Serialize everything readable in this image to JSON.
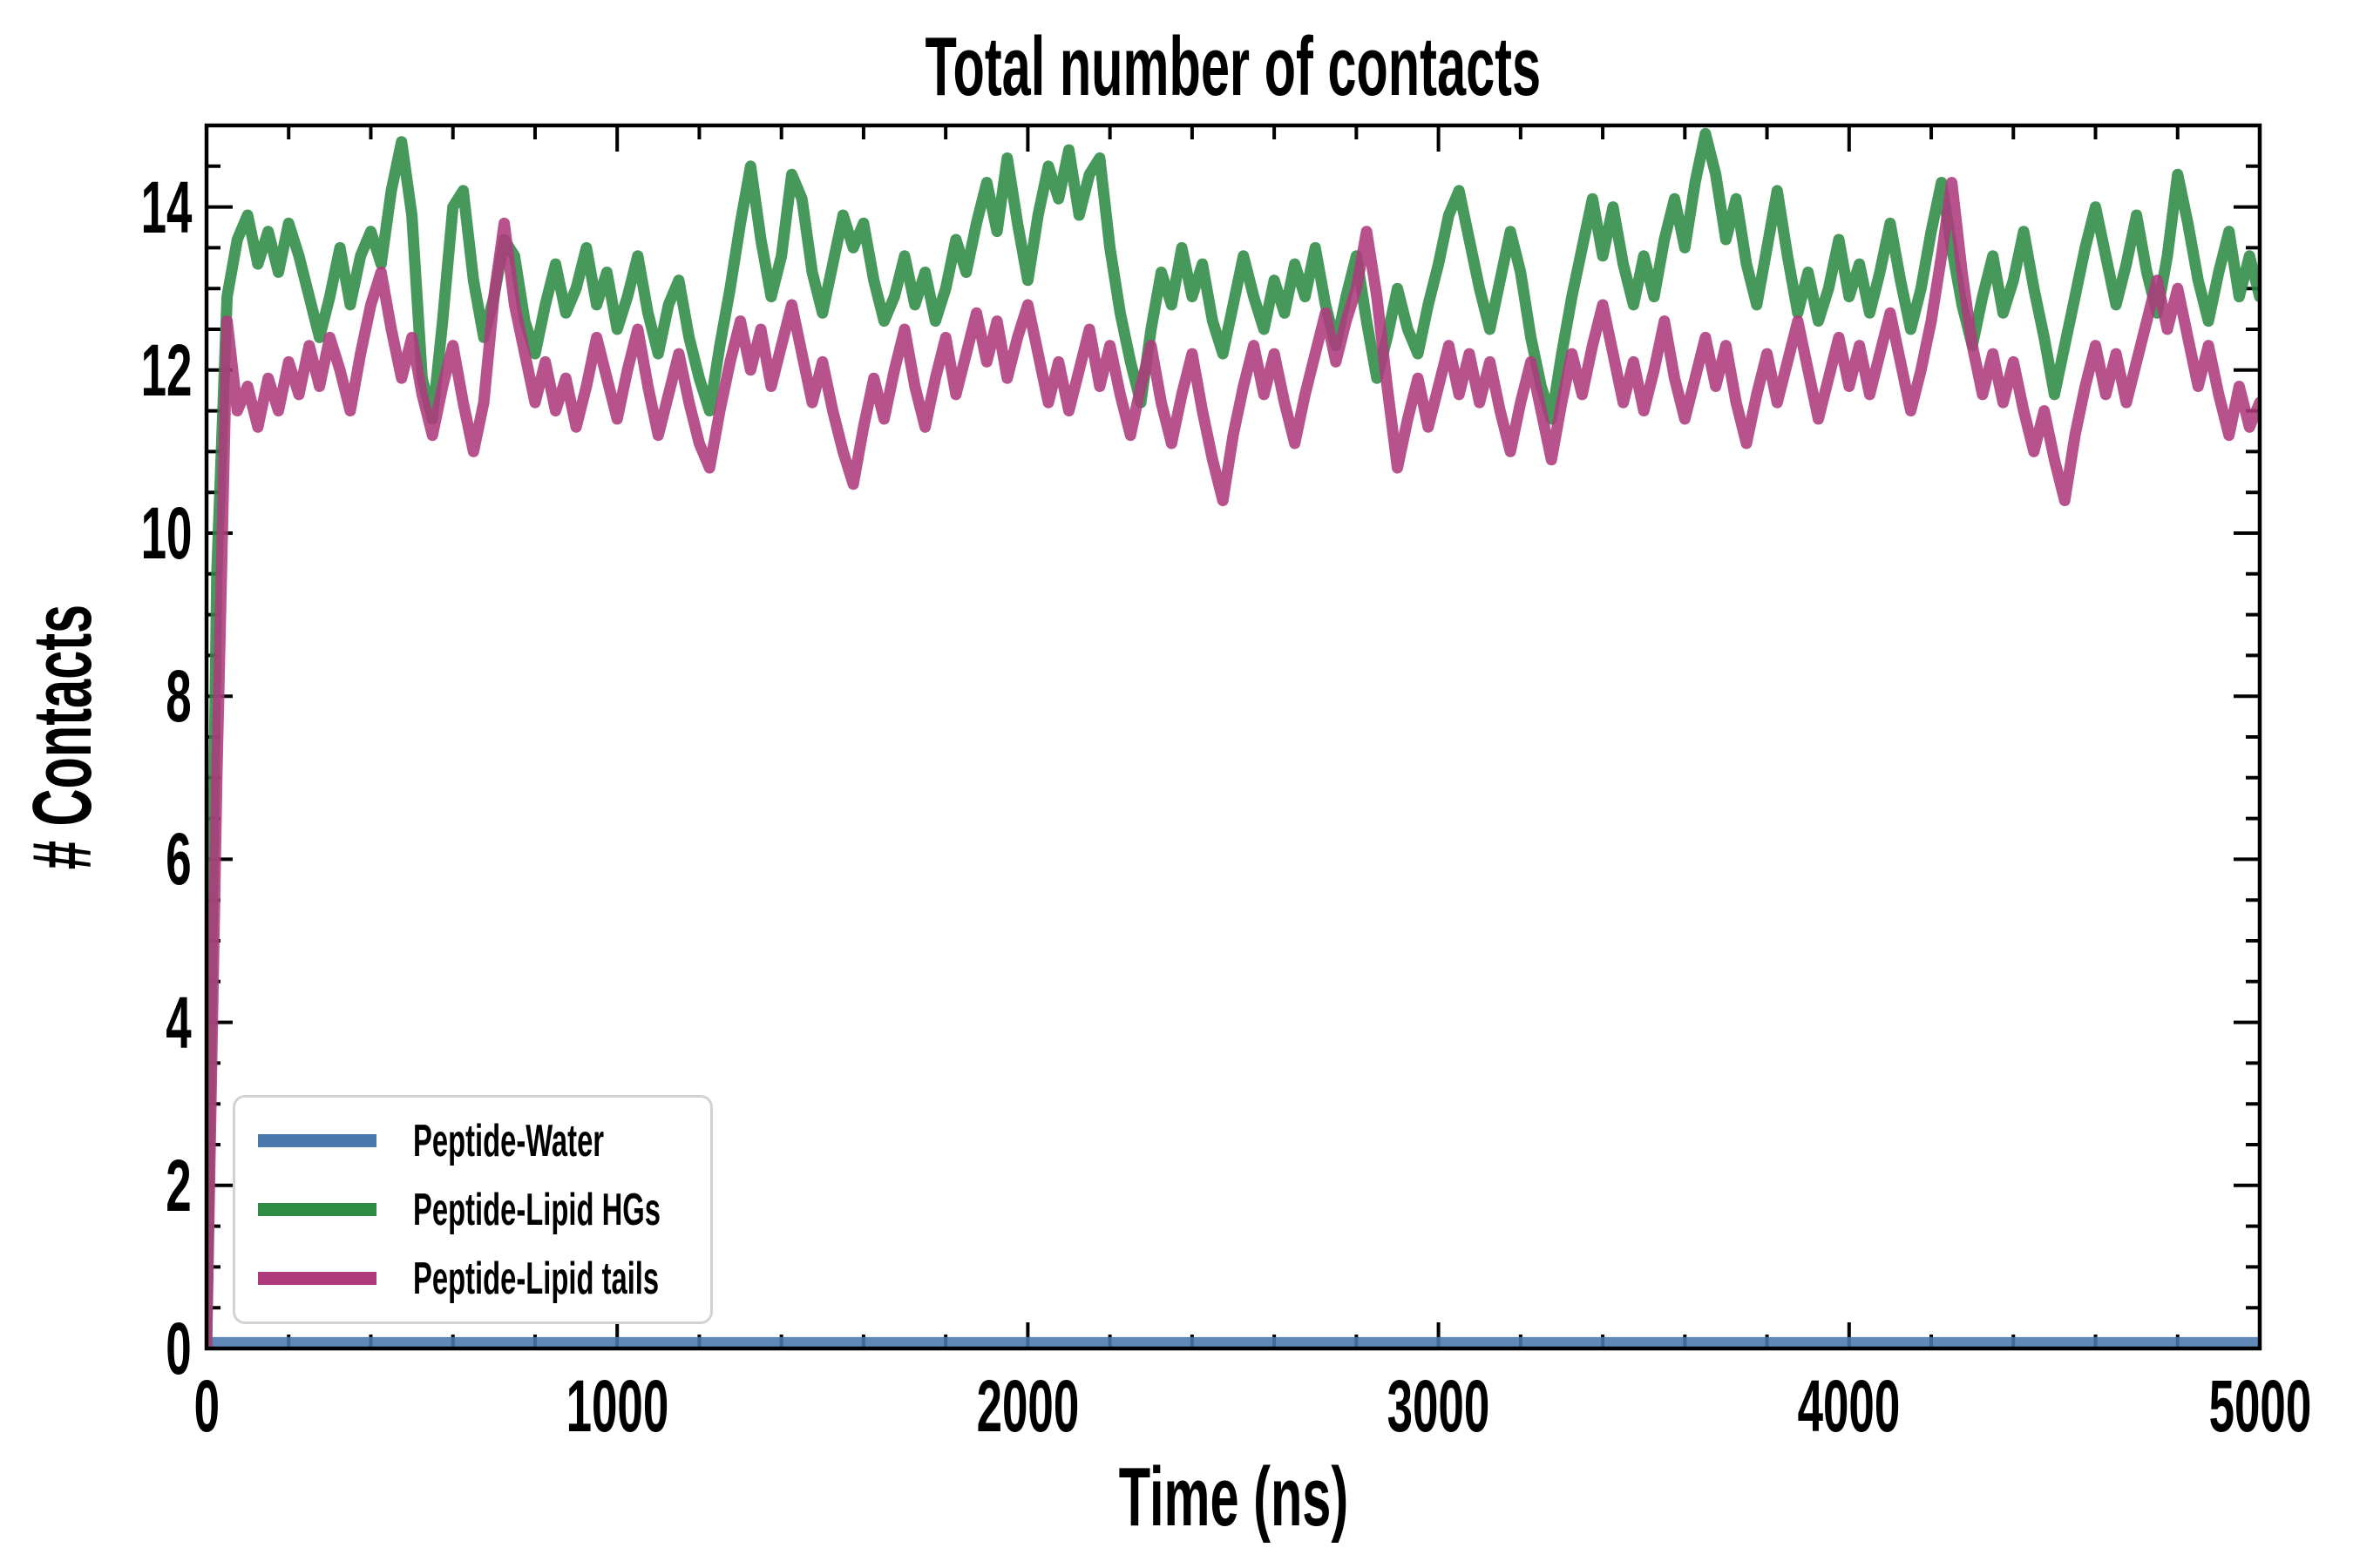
{
  "chart_data": {
    "type": "line",
    "title": "Total number of contacts",
    "xlabel": "Time (ns)",
    "ylabel": "# Contacts",
    "xlim": [
      0,
      5000
    ],
    "ylim": [
      0,
      15
    ],
    "x_major_ticks": [
      0,
      1000,
      2000,
      3000,
      4000,
      5000
    ],
    "x_minor_step": 200,
    "y_major_ticks": [
      0,
      2,
      4,
      6,
      8,
      10,
      12,
      14
    ],
    "y_minor_step": 0.5,
    "grid": false,
    "legend_position": "lower left",
    "axis_color": "#000000",
    "legend_border_color": "#d2d2d2",
    "line_width": 13,
    "line_opacity": 0.88,
    "x_start": 0,
    "x_step": 25,
    "series": [
      {
        "name": "Peptide-Water",
        "color": "#4a79ad",
        "constant_value": 0.07
      },
      {
        "name": "Peptide-Lipid HGs",
        "color": "#2e8b44",
        "values": [
          0.0,
          9.5,
          12.9,
          13.6,
          13.9,
          13.3,
          13.7,
          13.2,
          13.8,
          13.4,
          12.9,
          12.4,
          12.9,
          13.5,
          12.8,
          13.4,
          13.7,
          13.3,
          14.2,
          14.8,
          13.9,
          11.9,
          11.4,
          12.6,
          14.0,
          14.2,
          13.1,
          12.4,
          12.9,
          13.6,
          13.4,
          12.6,
          12.2,
          12.8,
          13.3,
          12.7,
          13.0,
          13.5,
          12.8,
          13.2,
          12.5,
          12.9,
          13.4,
          12.7,
          12.2,
          12.8,
          13.1,
          12.4,
          11.9,
          11.5,
          12.3,
          13.0,
          13.8,
          14.5,
          13.6,
          12.9,
          13.4,
          14.4,
          14.1,
          13.2,
          12.7,
          13.3,
          13.9,
          13.5,
          13.8,
          13.1,
          12.6,
          12.9,
          13.4,
          12.8,
          13.2,
          12.6,
          13.0,
          13.6,
          13.2,
          13.8,
          14.3,
          13.7,
          14.6,
          13.8,
          13.1,
          13.9,
          14.5,
          14.1,
          14.7,
          13.9,
          14.4,
          14.6,
          13.5,
          12.7,
          12.1,
          11.6,
          12.5,
          13.2,
          12.8,
          13.5,
          12.9,
          13.3,
          12.6,
          12.2,
          12.8,
          13.4,
          12.9,
          12.5,
          13.1,
          12.7,
          13.3,
          12.9,
          13.5,
          12.8,
          12.3,
          12.9,
          13.4,
          12.6,
          11.9,
          12.4,
          13.0,
          12.5,
          12.2,
          12.8,
          13.3,
          13.9,
          14.2,
          13.6,
          13.0,
          12.5,
          13.1,
          13.7,
          13.2,
          12.4,
          11.8,
          11.4,
          12.2,
          12.9,
          13.5,
          14.1,
          13.4,
          14.0,
          13.3,
          12.8,
          13.4,
          12.9,
          13.6,
          14.1,
          13.5,
          14.3,
          14.9,
          14.4,
          13.6,
          14.1,
          13.3,
          12.8,
          13.5,
          14.2,
          13.4,
          12.7,
          13.2,
          12.6,
          13.0,
          13.6,
          12.9,
          13.3,
          12.7,
          13.2,
          13.8,
          13.1,
          12.5,
          13.0,
          13.7,
          14.3,
          13.5,
          12.8,
          12.3,
          12.9,
          13.4,
          12.7,
          13.1,
          13.7,
          13.0,
          12.4,
          11.7,
          12.3,
          12.9,
          13.5,
          14.0,
          13.4,
          12.8,
          13.3,
          13.9,
          13.2,
          12.7,
          13.4,
          14.4,
          13.8,
          13.1,
          12.6,
          13.2,
          13.7,
          12.9,
          13.4,
          12.9
        ]
      },
      {
        "name": "Peptide-Lipid tails",
        "color": "#ae3a7d",
        "values": [
          0.0,
          7.0,
          12.6,
          11.5,
          11.8,
          11.3,
          11.9,
          11.5,
          12.1,
          11.7,
          12.3,
          11.8,
          12.4,
          12.0,
          11.5,
          12.2,
          12.8,
          13.2,
          12.5,
          11.9,
          12.4,
          11.7,
          11.2,
          11.8,
          12.3,
          11.6,
          11.0,
          11.6,
          12.9,
          13.8,
          12.8,
          12.2,
          11.6,
          12.1,
          11.5,
          11.9,
          11.3,
          11.8,
          12.4,
          11.9,
          11.4,
          12.0,
          12.5,
          11.8,
          11.2,
          11.7,
          12.2,
          11.6,
          11.1,
          10.8,
          11.5,
          12.1,
          12.6,
          12.0,
          12.5,
          11.8,
          12.3,
          12.8,
          12.2,
          11.6,
          12.1,
          11.5,
          11.0,
          10.6,
          11.3,
          11.9,
          11.4,
          12.0,
          12.5,
          11.8,
          11.3,
          11.9,
          12.4,
          11.7,
          12.2,
          12.7,
          12.1,
          12.6,
          11.9,
          12.4,
          12.8,
          12.2,
          11.6,
          12.1,
          11.5,
          12.0,
          12.5,
          11.8,
          12.3,
          11.7,
          11.2,
          11.8,
          12.3,
          11.6,
          11.1,
          11.7,
          12.2,
          11.5,
          10.9,
          10.4,
          11.2,
          11.8,
          12.3,
          11.7,
          12.2,
          11.6,
          11.1,
          11.7,
          12.2,
          12.7,
          12.1,
          12.6,
          13.0,
          13.7,
          12.9,
          11.8,
          10.8,
          11.4,
          11.9,
          11.3,
          11.8,
          12.3,
          11.7,
          12.2,
          11.6,
          12.1,
          11.5,
          11.0,
          11.6,
          12.1,
          11.5,
          10.9,
          11.6,
          12.2,
          11.7,
          12.3,
          12.8,
          12.2,
          11.6,
          12.1,
          11.5,
          12.0,
          12.6,
          11.9,
          11.4,
          11.9,
          12.4,
          11.8,
          12.3,
          11.6,
          11.1,
          11.7,
          12.2,
          11.6,
          12.1,
          12.6,
          12.0,
          11.4,
          11.9,
          12.4,
          11.8,
          12.3,
          11.7,
          12.2,
          12.7,
          12.1,
          11.5,
          12.0,
          12.6,
          13.4,
          14.3,
          13.2,
          12.3,
          11.7,
          12.2,
          11.6,
          12.1,
          11.5,
          11.0,
          11.5,
          10.9,
          10.4,
          11.2,
          11.8,
          12.3,
          11.7,
          12.2,
          11.6,
          12.1,
          12.6,
          13.1,
          12.5,
          13.0,
          12.4,
          11.8,
          12.3,
          11.7,
          11.2,
          11.8,
          11.3,
          11.6
        ]
      }
    ]
  }
}
